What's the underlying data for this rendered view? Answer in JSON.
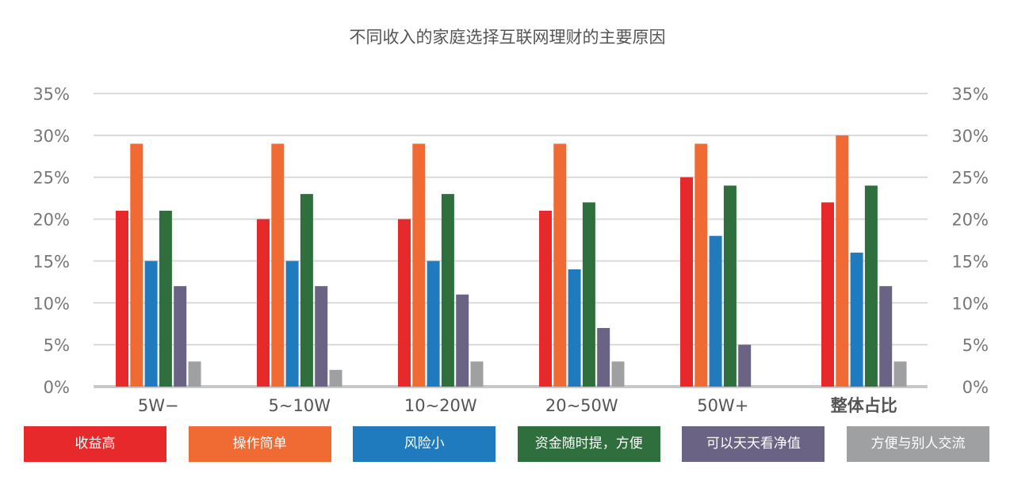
{
  "chart_data": {
    "type": "bar",
    "title": "不同收入的家庭选择互联网理财的主要原因",
    "categories": [
      "5W−",
      "5~10W",
      "10~20W",
      "20~50W",
      "50W+",
      "整体占比"
    ],
    "series": [
      {
        "name": "收益高",
        "color": "#E8292B",
        "values": [
          21,
          20,
          20,
          21,
          25,
          22
        ]
      },
      {
        "name": "操作简单",
        "color": "#F06A33",
        "values": [
          29,
          29,
          29,
          29,
          29,
          30
        ]
      },
      {
        "name": "风险小",
        "color": "#1F7BBE",
        "values": [
          15,
          15,
          15,
          14,
          18,
          16
        ]
      },
      {
        "name": "资金随时提，方便",
        "color": "#2F6F3E",
        "values": [
          21,
          23,
          23,
          22,
          24,
          24
        ]
      },
      {
        "name": "可以天天看净值",
        "color": "#6B6384",
        "values": [
          12,
          12,
          11,
          7,
          5,
          12
        ]
      },
      {
        "name": "方便与别人交流",
        "color": "#9FA0A2",
        "values": [
          3,
          2,
          3,
          3,
          0,
          3
        ]
      }
    ],
    "ylim": [
      0,
      35
    ],
    "yticks": [
      "0%",
      "5%",
      "10%",
      "15%",
      "20%",
      "25%",
      "30%",
      "35%"
    ],
    "grid": true,
    "dual_y_axis": true,
    "legend_placement": "bottom"
  }
}
